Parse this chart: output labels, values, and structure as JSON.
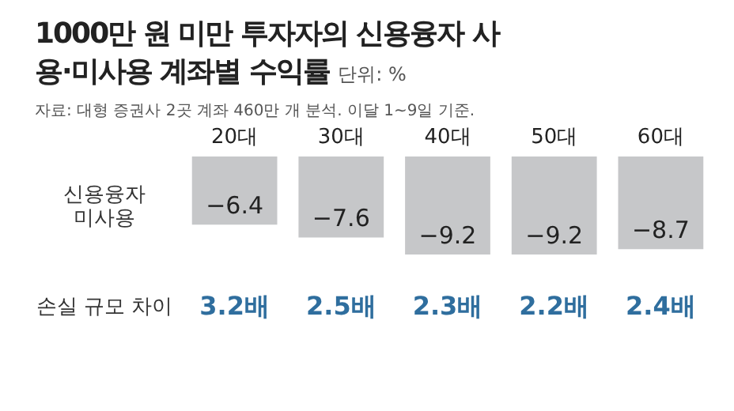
{
  "chart_data": {
    "type": "bar",
    "title": "1000만 원 미만 투자자의 신용융자 사용·미사용 계좌별 수익률",
    "subtitle": "단위: %",
    "categories": [
      "20대",
      "30대",
      "40대",
      "50대",
      "60대"
    ],
    "series": [
      {
        "name": "신용융자 미사용",
        "color": "#c6c7c9",
        "values": [
          -6.4,
          -7.6,
          -9.2,
          -9.2,
          -8.7
        ]
      }
    ],
    "data_labels": true,
    "annotations": [
      "자료: 대형 증권사 2곳 계좌 460만 개 분석. 이달 1~9일 기준.",
      "손실 규모 차이",
      "3.2배",
      "2.5배",
      "2.3배",
      "2.2배",
      "2.4배"
    ]
  }
}
